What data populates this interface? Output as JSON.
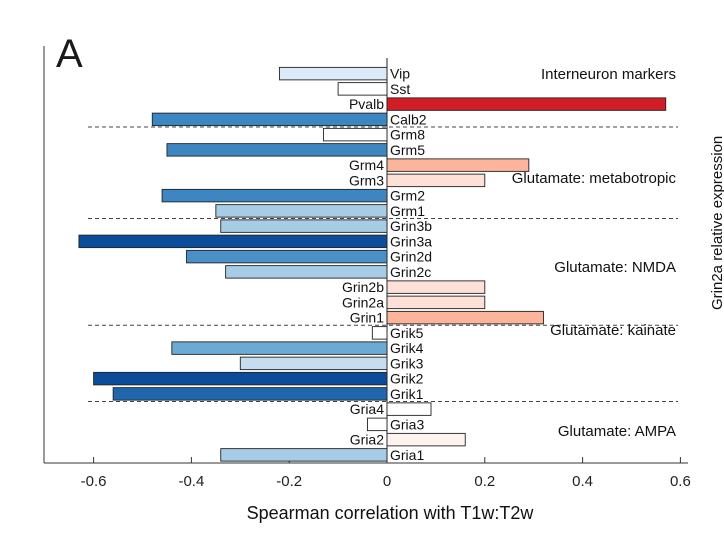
{
  "panel_label": "A",
  "side_label": "Grin2a relative expression",
  "chart_data": {
    "type": "bar",
    "orientation": "horizontal",
    "xlabel": "Spearman correlation with T1w:T2w",
    "xlim": [
      -0.7,
      0.62
    ],
    "xticks": [
      -0.6,
      -0.4,
      -0.2,
      0,
      0.2,
      0.4,
      0.6
    ],
    "xtick_labels": [
      "-0.6",
      "-0.4",
      "-0.2",
      "0",
      "0.2",
      "0.4",
      "0.6"
    ],
    "categories": [
      "Vip",
      "Sst",
      "Pvalb",
      "Calb2",
      "Grm8",
      "Grm5",
      "Grm4",
      "Grm3",
      "Grm2",
      "Grm1",
      "Grin3b",
      "Grin3a",
      "Grin2d",
      "Grin2c",
      "Grin2b",
      "Grin2a",
      "Grin1",
      "Grik5",
      "Grik4",
      "Grik3",
      "Grik2",
      "Grik1",
      "Gria4",
      "Gria3",
      "Gria2",
      "Gria1"
    ],
    "values": [
      -0.22,
      -0.1,
      0.57,
      -0.48,
      -0.13,
      -0.45,
      0.29,
      0.2,
      -0.46,
      -0.35,
      -0.34,
      -0.63,
      -0.41,
      -0.33,
      0.2,
      0.2,
      0.32,
      -0.03,
      -0.44,
      -0.3,
      -0.6,
      -0.56,
      0.09,
      -0.04,
      0.16,
      -0.34
    ],
    "colors": [
      "#dce9f6",
      "#ffffff",
      "#d21d27",
      "#3e86c2",
      "#ffffff",
      "#3e86c2",
      "#fcb59b",
      "#fde1d6",
      "#3e86c2",
      "#a7cce5",
      "#a7cce5",
      "#0b4d9a",
      "#4a90c8",
      "#a7cce5",
      "#fde1d6",
      "#fde1d6",
      "#fcb59b",
      "#ffffff",
      "#6aaad5",
      "#c8dcf0",
      "#0b4d9a",
      "#1f66ad",
      "#ffffff",
      "#ffffff",
      "#fef3ee",
      "#a7cce5"
    ],
    "groups": [
      {
        "name": "Interneuron markers",
        "start": 0,
        "end": 3
      },
      {
        "name": "Glutamate: metabotropic",
        "start": 4,
        "end": 9
      },
      {
        "name": "Glutamate: NMDA",
        "start": 10,
        "end": 16
      },
      {
        "name": "Glutamate: kainate",
        "start": 17,
        "end": 21
      },
      {
        "name": "Glutamate: AMPA",
        "start": 22,
        "end": 25
      }
    ],
    "separators_after": [
      3,
      9,
      16,
      21
    ],
    "grid": false
  }
}
